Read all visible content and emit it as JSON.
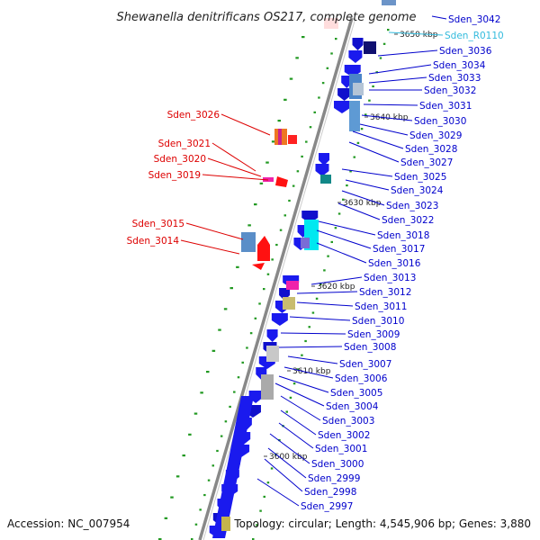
{
  "title": "Shewanella denitrificans OS217, complete genome",
  "accession": "Accession: NC_007954",
  "topology": "Topology: circular; Length: 4,545,906 bp; Genes: 3,880",
  "colors": {
    "forward_label": "#0000cc",
    "reverse_label": "#dd0000",
    "rna_label": "#33bbdd",
    "backbone": "#888888",
    "dot_green": "#229922"
  },
  "kbp_marks": [
    "3650 kbp",
    "3640 kbp",
    "3630 kbp",
    "3620 kbp",
    "3610 kbp",
    "3600 kbp"
  ],
  "right_labels": [
    "Sden_3042",
    "Sden_R0110",
    "Sden_3036",
    "Sden_3034",
    "Sden_3033",
    "Sden_3032",
    "Sden_3031",
    "Sden_3030",
    "Sden_3029",
    "Sden_3028",
    "Sden_3027",
    "Sden_3025",
    "Sden_3024",
    "Sden_3023",
    "Sden_3022",
    "Sden_3018",
    "Sden_3017",
    "Sden_3016",
    "Sden_3013",
    "Sden_3012",
    "Sden_3011",
    "Sden_3010",
    "Sden_3009",
    "Sden_3008",
    "Sden_3007",
    "Sden_3006",
    "Sden_3005",
    "Sden_3004",
    "Sden_3003",
    "Sden_3002",
    "Sden_3001",
    "Sden_3000",
    "Sden_2999",
    "Sden_2998",
    "Sden_2997"
  ],
  "left_labels": [
    "Sden_3026",
    "Sden_3021",
    "Sden_3020",
    "Sden_3019",
    "Sden_3015",
    "Sden_3014"
  ]
}
